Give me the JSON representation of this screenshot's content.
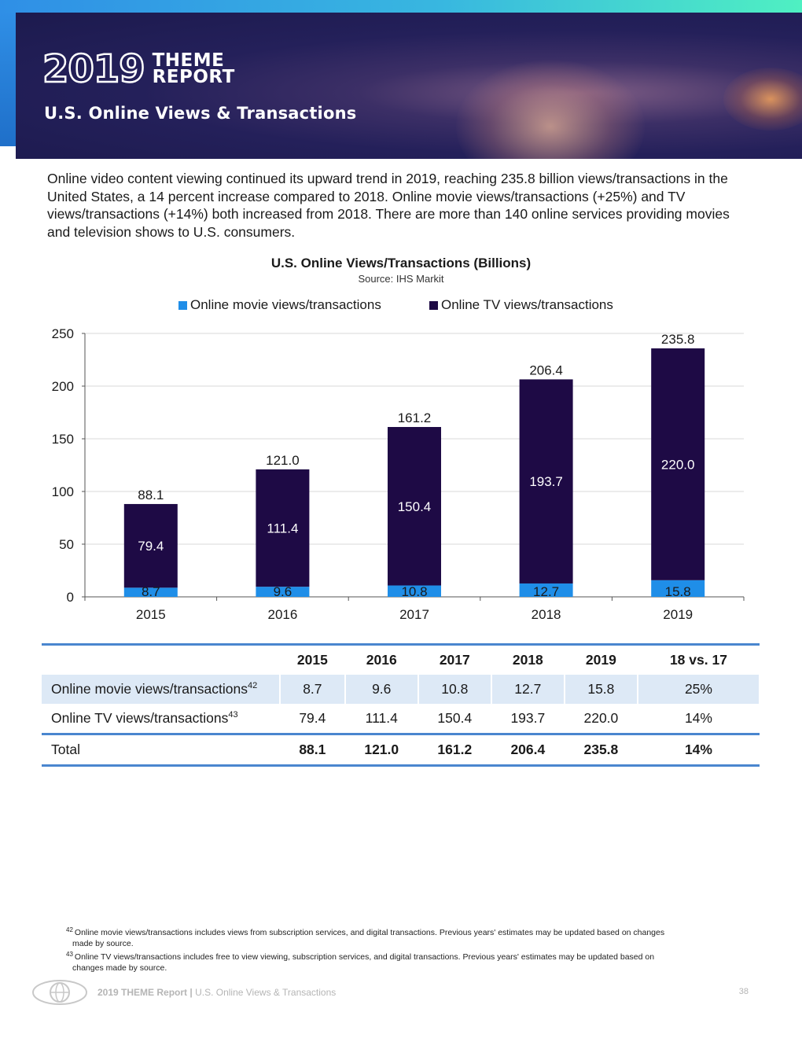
{
  "header": {
    "logo_year": "2019",
    "logo_word1": "THEME",
    "logo_word2": "REPORT",
    "page_title": "U.S. Online Views & Transactions"
  },
  "intro_text": "Online video content viewing continued its upward trend in 2019, reaching 235.8 billion views/transactions in the United States, a 14 percent increase compared to 2018. Online movie views/transactions (+25%) and TV views/transactions (+14%) both increased from 2018. There are more than 140 online services providing movies and television shows to U.S. consumers.",
  "chart_data": {
    "type": "bar",
    "stacked": true,
    "title": "U.S. Online Views/Transactions (Billions)",
    "subtitle": "Source: IHS Markit",
    "categories": [
      "2015",
      "2016",
      "2017",
      "2018",
      "2019"
    ],
    "series": [
      {
        "name": "Online movie views/transactions",
        "color": "#1f8ee8",
        "values": [
          8.7,
          9.6,
          10.8,
          12.7,
          15.8
        ]
      },
      {
        "name": "Online TV views/transactions",
        "color": "#1e0a45",
        "values": [
          79.4,
          111.4,
          150.4,
          193.7,
          220.0
        ]
      }
    ],
    "totals": [
      88.1,
      121.0,
      161.2,
      206.4,
      235.8
    ],
    "value_labels": {
      "movie": [
        "8.7",
        "9.6",
        "10.8",
        "12.7",
        "15.8"
      ],
      "tv": [
        "79.4",
        "111.4",
        "150.4",
        "193.7",
        "220.0"
      ],
      "total": [
        "88.1",
        "121.0",
        "161.2",
        "206.4",
        "235.8"
      ]
    },
    "ylim": [
      0,
      250
    ],
    "yticks": [
      0,
      50,
      100,
      150,
      200,
      250
    ],
    "xlabel": "",
    "ylabel": "",
    "grid": true,
    "legend": "top"
  },
  "table": {
    "headers": [
      "",
      "2015",
      "2016",
      "2017",
      "2018",
      "2019",
      "18 vs. 17"
    ],
    "rows": [
      {
        "label": "Online movie views/transactions",
        "note": "42",
        "values": [
          "8.7",
          "9.6",
          "10.8",
          "12.7",
          "15.8",
          "25%"
        ]
      },
      {
        "label": "Online TV views/transactions",
        "note": "43",
        "values": [
          "79.4",
          "111.4",
          "150.4",
          "193.7",
          "220.0",
          "14%"
        ]
      },
      {
        "label": "Total",
        "note": "",
        "values": [
          "88.1",
          "121.0",
          "161.2",
          "206.4",
          "235.8",
          "14%"
        ]
      }
    ]
  },
  "footnotes": [
    {
      "num": "42",
      "text": "Online movie views/transactions includes views from subscription services, and digital transactions. Previous years' estimates may be updated based on changes",
      "cont": "made by source."
    },
    {
      "num": "43",
      "text": "Online TV views/transactions includes free to view viewing, subscription services, and digital transactions. Previous years' estimates may be updated based on",
      "cont": "changes made by source."
    }
  ],
  "footer": {
    "report": "2019 THEME Report",
    "separator": "|",
    "section": "U.S. Online Views & Transactions",
    "page": "38"
  },
  "colors": {
    "accent": "#2f8fe6",
    "banner": "#1c1a4e",
    "movie": "#1f8ee8",
    "tv": "#1e0a45",
    "table_rule": "#4a86cf",
    "table_shade": "#dde9f6"
  }
}
